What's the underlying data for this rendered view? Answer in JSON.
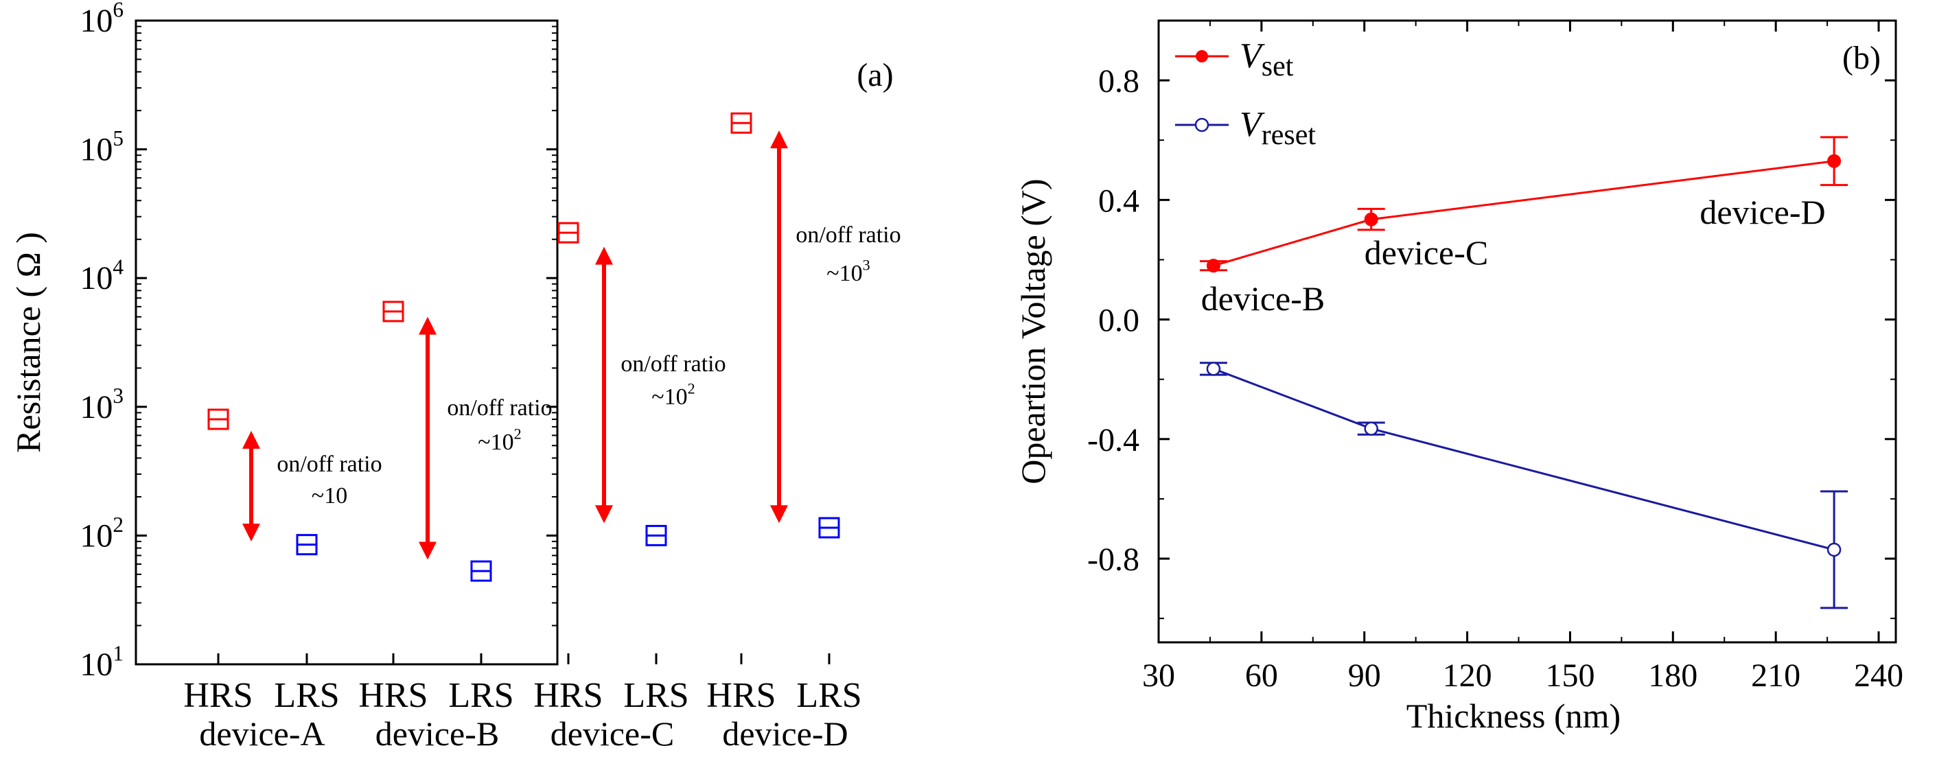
{
  "colors": {
    "red": "#ff0000",
    "blue": "#0000ff",
    "navy": "#1a1aa0",
    "black": "#000000"
  },
  "chart_data": [
    {
      "type": "scatter",
      "panel_label": "(a)",
      "title": "",
      "ylabel": "Resistance ( Ω )",
      "yscale": "log",
      "ylim_exp": [
        1,
        6
      ],
      "ytick_base": "10",
      "ytick_exponents": [
        "1",
        "2",
        "3",
        "4",
        "5",
        "6"
      ],
      "categories": [
        {
          "state": "HRS",
          "device": "device-A",
          "color": "#ff0000"
        },
        {
          "state": "LRS",
          "device": "",
          "color": "#0000ff"
        },
        {
          "state": "HRS",
          "device": "device-B",
          "color": "#ff0000"
        },
        {
          "state": "LRS",
          "device": "",
          "color": "#0000ff"
        },
        {
          "state": "HRS",
          "device": "device-C",
          "color": "#ff0000"
        },
        {
          "state": "LRS",
          "device": "",
          "color": "#0000ff"
        },
        {
          "state": "HRS",
          "device": "device-D",
          "color": "#ff0000"
        },
        {
          "state": "LRS",
          "device": "",
          "color": "#0000ff"
        }
      ],
      "values": [
        800,
        85,
        5500,
        53,
        22500,
        100,
        160000,
        115
      ],
      "arrows": [
        {
          "label": "on/off ratio",
          "ratio_base": "~10",
          "ratio_exp": "",
          "from": 90,
          "to": 650
        },
        {
          "label": "on/off ratio",
          "ratio_base": "~10",
          "ratio_exp": "2",
          "from": 65,
          "to": 5000
        },
        {
          "label": "on/off ratio",
          "ratio_base": "~10",
          "ratio_exp": "2",
          "from": 125,
          "to": 17500
        },
        {
          "label": "on/off ratio",
          "ratio_base": "~10",
          "ratio_exp": "3",
          "from": 125,
          "to": 140000
        }
      ]
    },
    {
      "type": "line",
      "panel_label": "(b)",
      "title": "",
      "xlabel": "Thickness (nm)",
      "ylabel": "Opeartion Voltage (V)",
      "xlim": [
        30,
        245
      ],
      "ylim": [
        -1.08,
        1.0
      ],
      "xticks": [
        30,
        60,
        90,
        120,
        150,
        180,
        210,
        240
      ],
      "yticks": [
        -0.8,
        -0.4,
        0.0,
        0.4,
        0.8
      ],
      "ytick_labels": [
        "-0.8",
        "-0.4",
        "0.0",
        "0.4",
        "0.8"
      ],
      "series": [
        {
          "name_main": "V",
          "name_sub": "set",
          "color": "#ff0000",
          "marker": "filled-circle",
          "x": [
            46,
            92,
            227
          ],
          "y": [
            0.18,
            0.335,
            0.53
          ],
          "err": [
            0.015,
            0.035,
            0.08
          ]
        },
        {
          "name_main": "V",
          "name_sub": "reset",
          "color": "#1a1aa0",
          "marker": "open-circle",
          "x": [
            46,
            92,
            227
          ],
          "y": [
            -0.165,
            -0.365,
            -0.77
          ],
          "err": [
            0.02,
            0.02,
            0.195
          ]
        }
      ],
      "annotations": [
        {
          "text": "device-B",
          "x": 46,
          "y": 0.18
        },
        {
          "text": "device-C",
          "x": 92,
          "y": 0.335
        },
        {
          "text": "device-D",
          "x": 227,
          "y": 0.53
        }
      ]
    }
  ]
}
